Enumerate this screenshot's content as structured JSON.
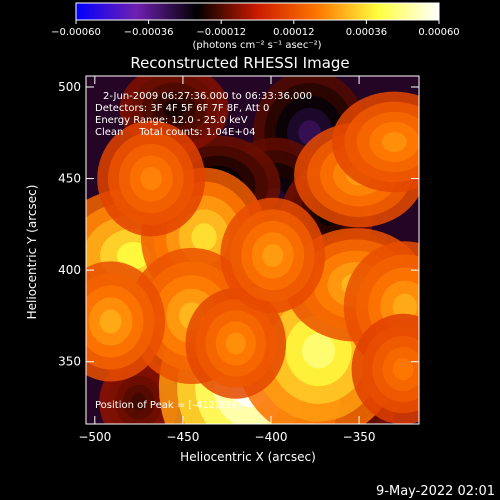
{
  "chart_data": {
    "type": "heatmap",
    "title": "Reconstructed RHESSI Image",
    "xlabel": "Heliocentric X (arcsec)",
    "ylabel": "Heliocentric Y (arcsec)",
    "xlim": [
      -505,
      -316
    ],
    "ylim": [
      316,
      506
    ],
    "xticks": [
      -500,
      -450,
      -400,
      -350
    ],
    "yticks": [
      350,
      400,
      450,
      500
    ],
    "colorbar": {
      "range": [
        -0.0006,
        0.0006
      ],
      "ticks": [
        "-0.00060",
        "-0.00036",
        "-0.00012",
        "0.00012",
        "0.00036",
        "0.00060"
      ],
      "unit_label": "(photons cm⁻² s⁻¹ asec⁻²)",
      "colors": [
        "#0000ff",
        "#7020b0",
        "#000000",
        "#cc1a00",
        "#ff7800",
        "#ffff40",
        "#ffffff"
      ]
    },
    "annotations": [
      "2-Jun-2009 06:27:36.000 to 06:33:36.000",
      "Detectors: 3F 4F 5F 6F 7F 8F, Att 0",
      "Energy Range: 12.0 - 25.0 keV",
      "Clean     Total counts: 1.04E+04"
    ],
    "peak_label": "Position of Peak = [-412,334]",
    "peak": [
      -412,
      334
    ],
    "hot_spots": [
      {
        "x": -412,
        "y": 336,
        "v": 0.00062
      },
      {
        "x": -373,
        "y": 356,
        "v": 0.00046
      },
      {
        "x": -478,
        "y": 408,
        "v": 0.0004
      },
      {
        "x": -438,
        "y": 418,
        "v": 0.00036
      },
      {
        "x": -445,
        "y": 375,
        "v": 0.0003
      },
      {
        "x": -352,
        "y": 392,
        "v": 0.0003
      },
      {
        "x": -491,
        "y": 372,
        "v": 0.00028
      },
      {
        "x": -324,
        "y": 380,
        "v": 0.00028
      },
      {
        "x": -350,
        "y": 452,
        "v": 0.00026
      },
      {
        "x": -420,
        "y": 360,
        "v": 0.00024
      },
      {
        "x": -468,
        "y": 450,
        "v": 0.00022
      },
      {
        "x": -330,
        "y": 470,
        "v": 0.00024
      },
      {
        "x": -399,
        "y": 408,
        "v": 0.00026
      },
      {
        "x": -325,
        "y": 346,
        "v": 0.0002
      }
    ],
    "cold_spots": [
      {
        "x": -378,
        "y": 475,
        "v": -0.0003
      },
      {
        "x": -398,
        "y": 438,
        "v": -0.00026
      },
      {
        "x": -430,
        "y": 446,
        "v": -0.00024
      },
      {
        "x": -368,
        "y": 430,
        "v": -0.0002
      },
      {
        "x": -352,
        "y": 388,
        "v": -0.00024
      },
      {
        "x": -455,
        "y": 488,
        "v": -0.00018
      },
      {
        "x": -472,
        "y": 360,
        "v": -0.00018
      },
      {
        "x": -396,
        "y": 376,
        "v": -0.00018
      },
      {
        "x": -360,
        "y": 330,
        "v": -0.0002
      },
      {
        "x": -475,
        "y": 328,
        "v": -0.00014
      }
    ]
  },
  "footer": {
    "timestamp": "9-May-2022 02:01"
  }
}
